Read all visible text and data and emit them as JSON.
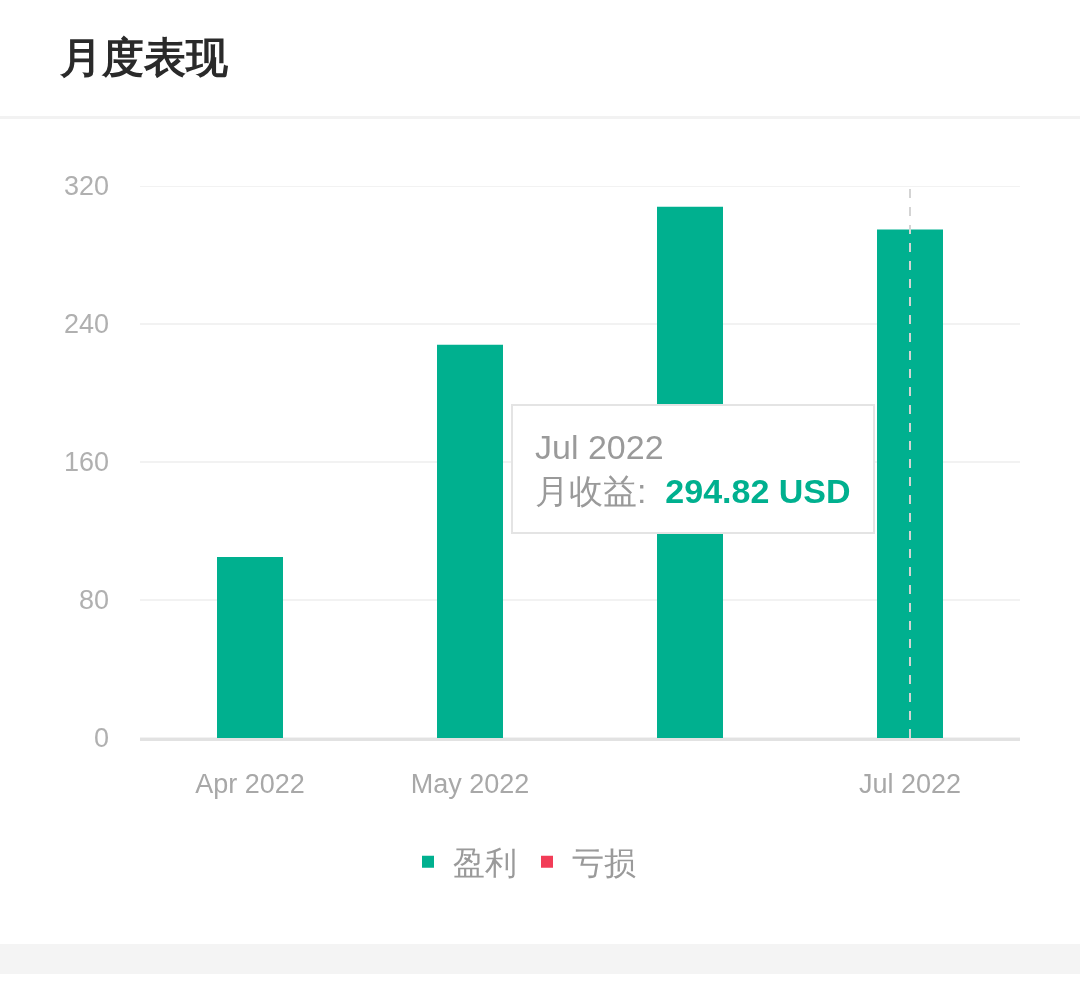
{
  "chart_data": {
    "type": "bar",
    "title": "月度表现",
    "categories": [
      "Apr 2022",
      "May 2022",
      null,
      "Jul 2022"
    ],
    "series": [
      {
        "name": "盈利",
        "color": "#00b08f",
        "values": [
          105,
          228,
          308,
          294.82
        ]
      },
      {
        "name": "亏损",
        "color": "#f23c57",
        "values": [
          null,
          null,
          null,
          null
        ]
      }
    ],
    "ylim": [
      0,
      320
    ],
    "yticks": [
      0,
      80,
      160,
      240,
      320
    ],
    "grid": "y",
    "legend": "bottom",
    "ref_lines": [
      {
        "axis": "x",
        "value": "Jul 2022",
        "line_style": "dashed",
        "color": "#d4d4d4"
      }
    ],
    "annotations": [
      "Jul 2022\n月收益: 294.82 USD"
    ]
  }
}
